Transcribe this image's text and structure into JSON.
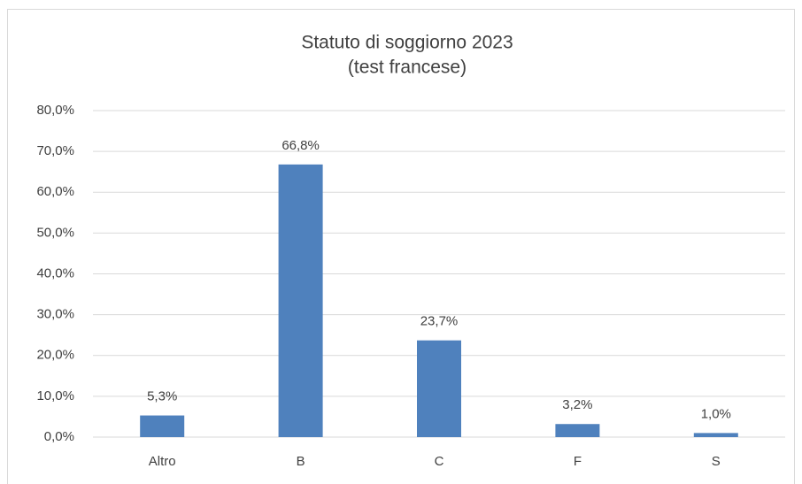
{
  "chart_data": {
    "type": "bar",
    "title": "Statuto di soggiorno 2023",
    "subtitle": "(test francese)",
    "categories": [
      "Altro",
      "B",
      "C",
      "F",
      "S"
    ],
    "values": [
      5.3,
      66.8,
      23.7,
      3.2,
      1.0
    ],
    "value_labels": [
      "5,3%",
      "66,8%",
      "23,7%",
      "3,2%",
      "1,0%"
    ],
    "color": "#4f81bd",
    "ylim": [
      0,
      80
    ],
    "yticks": [
      {
        "value": 0,
        "label": "0,0%"
      },
      {
        "value": 10,
        "label": "10,0%"
      },
      {
        "value": 20,
        "label": "20,0%"
      },
      {
        "value": 30,
        "label": "30,0%"
      },
      {
        "value": 40,
        "label": "40,0%"
      },
      {
        "value": 50,
        "label": "50,0%"
      },
      {
        "value": 60,
        "label": "60,0%"
      },
      {
        "value": 70,
        "label": "70,0%"
      },
      {
        "value": 80,
        "label": "80,0%"
      }
    ],
    "grid": true
  }
}
